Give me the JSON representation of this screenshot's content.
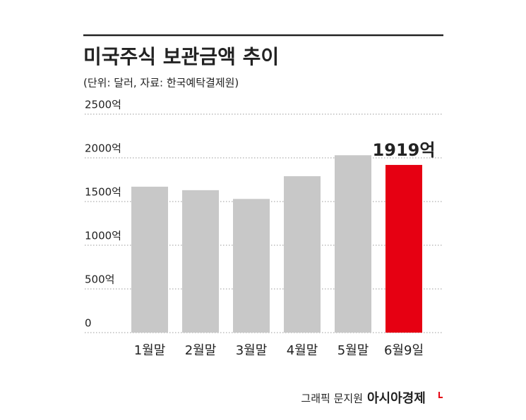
{
  "chart_data": {
    "type": "bar",
    "title": "미국주식 보관금액 추이",
    "subtitle": "(단위: 달러, 자료: 한국예탁결제원)",
    "categories": [
      "1월말",
      "2월말",
      "3월말",
      "4월말",
      "5월말",
      "6월9일"
    ],
    "values": [
      1670,
      1630,
      1530,
      1790,
      2030,
      1919
    ],
    "value_labels": [
      null,
      null,
      null,
      null,
      null,
      "1919억"
    ],
    "colors": [
      "#c8c8c8",
      "#c8c8c8",
      "#c8c8c8",
      "#c8c8c8",
      "#c8c8c8",
      "#e60012"
    ],
    "ylim": [
      0,
      2500
    ],
    "yticks": [
      0,
      {
        "value": 500,
        "label": "500억"
      },
      {
        "value": 1000,
        "label": "1000억"
      },
      {
        "value": 1500,
        "label": "1500억"
      },
      {
        "value": 2000,
        "label": "2000억"
      },
      {
        "value": 2500,
        "label": "2500억"
      }
    ],
    "grid": true
  },
  "footer": {
    "credit": "그래픽 문지원",
    "logo": "아시아경제"
  }
}
